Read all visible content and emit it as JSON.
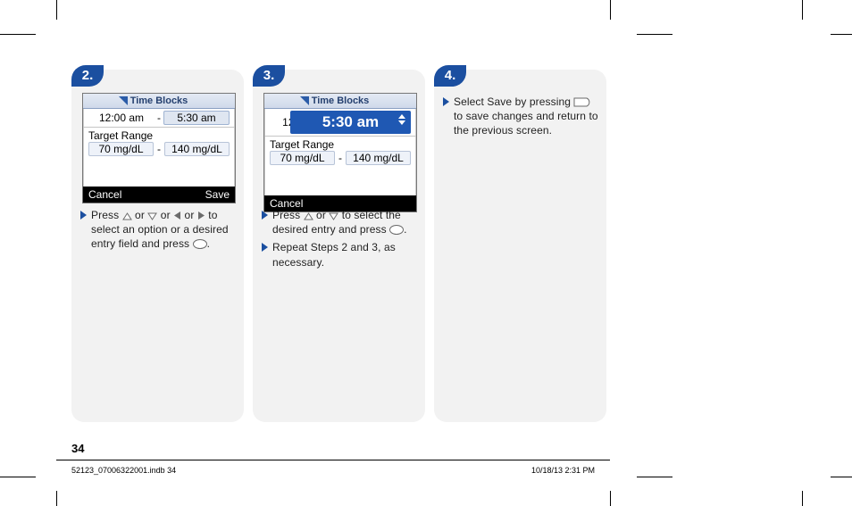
{
  "page_number": "34",
  "footer": {
    "file": "52123_07006322001.indb   34",
    "datetime": "10/18/13   2:31 PM"
  },
  "steps": [
    {
      "num": "2.",
      "device": {
        "title": "Time Blocks",
        "time_from": "12:00 am",
        "time_to": "5:30 am",
        "range_label": "Target Range",
        "range_low": "70 mg/dL",
        "range_high": "140 mg/dL",
        "soft_left": "Cancel",
        "soft_right": "Save"
      },
      "bullets": [
        {
          "pre": "Press ",
          "icons": [
            "up",
            "or",
            "down",
            "or",
            "left",
            "or",
            "right"
          ],
          "post": " to select an option or a desired entry field and press ",
          "end_icon": "ok",
          "tail": "."
        }
      ]
    },
    {
      "num": "3.",
      "device": {
        "title": "Time Blocks",
        "time_from": "12:",
        "time_to": "5:30 am",
        "range_label": "Target Range",
        "range_low": "70 mg/dL",
        "range_high": "140 mg/dL",
        "soft_left": "Cancel",
        "soft_right": ""
      },
      "bullets": [
        {
          "pre": "Press ",
          "icons": [
            "up",
            "or",
            "down"
          ],
          "post": " to select the desired entry and press ",
          "end_icon": "ok",
          "tail": "."
        },
        {
          "pre": "Repeat Steps 2 and 3, as necessary.",
          "icons": [],
          "post": "",
          "end_icon": null,
          "tail": ""
        }
      ]
    },
    {
      "num": "4.",
      "device": null,
      "bullets": [
        {
          "pre": "Select Save by pressing ",
          "icons": [],
          "post": "",
          "end_icon": "soft-right",
          "tail": " to save changes and return to the previous screen."
        }
      ]
    }
  ]
}
